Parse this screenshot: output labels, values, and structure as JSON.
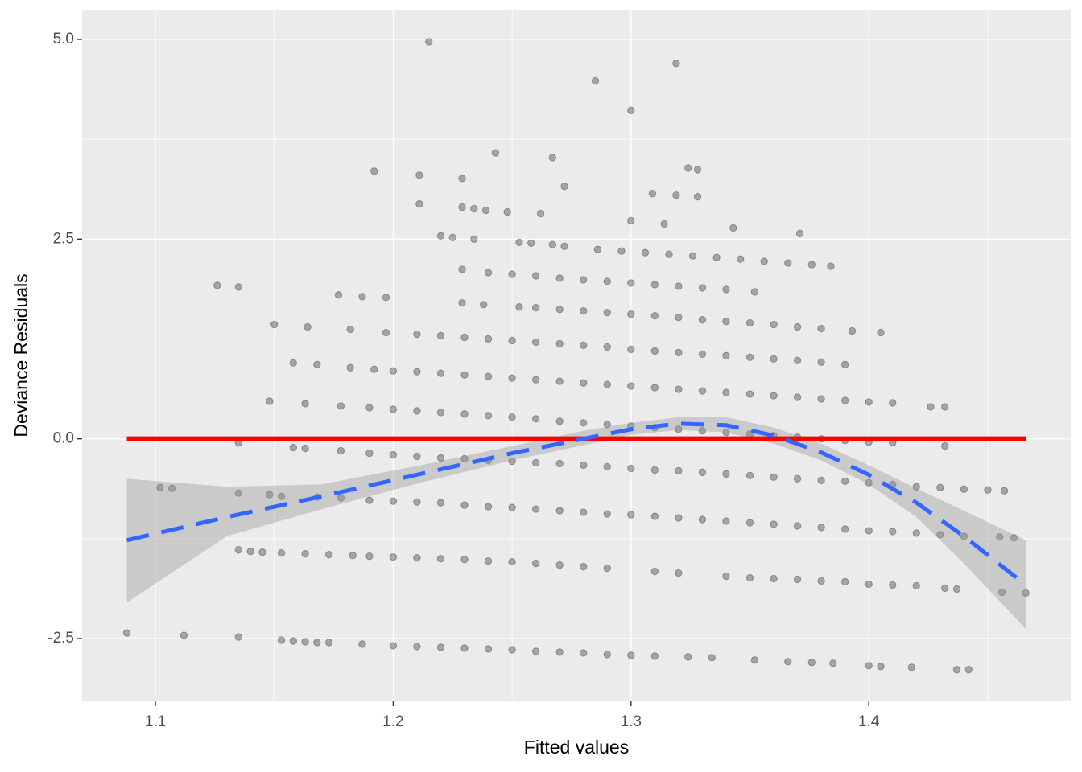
{
  "chart_data": {
    "type": "scatter",
    "x_label": "Fitted values",
    "y_label": "Deviance Residuals",
    "xlim": [
      1.0692,
      1.4849
    ],
    "ylim": [
      -3.285,
      5.372
    ],
    "xticks": [
      1.1,
      1.2,
      1.3,
      1.4
    ],
    "yticks": [
      {
        "value": -2.5,
        "label": "-2.5"
      },
      {
        "value": 0,
        "label": "0.0"
      },
      {
        "value": 2.5,
        "label": "2.5"
      },
      {
        "value": 5,
        "label": "5.0"
      }
    ],
    "x_minor_grid": [
      1.15,
      1.25,
      1.35,
      1.45
    ],
    "y_minor_grid": [
      -1.25,
      1.25,
      3.75
    ],
    "grid": true,
    "panel_color": "#EBEBEB",
    "point_color": "#000000",
    "x": [
      1.088,
      1.112,
      1.135,
      1.126,
      1.135,
      1.192,
      1.211,
      1.215,
      1.285,
      1.3,
      1.319,
      1.243,
      1.267,
      1.229,
      1.272,
      1.309,
      1.324,
      1.328,
      1.319,
      1.328,
      1.211,
      1.229,
      1.234,
      1.239,
      1.248,
      1.262,
      1.3,
      1.314,
      1.343,
      1.371,
      1.22,
      1.225,
      1.234,
      1.253,
      1.258,
      1.267,
      1.272,
      1.286,
      1.296,
      1.306,
      1.316,
      1.326,
      1.336,
      1.346,
      1.356,
      1.366,
      1.376,
      1.384,
      1.229,
      1.24,
      1.25,
      1.26,
      1.27,
      1.28,
      1.29,
      1.3,
      1.31,
      1.32,
      1.33,
      1.34,
      1.352,
      1.177,
      1.187,
      1.197,
      1.229,
      1.238,
      1.253,
      1.26,
      1.27,
      1.28,
      1.29,
      1.3,
      1.31,
      1.32,
      1.33,
      1.34,
      1.35,
      1.36,
      1.37,
      1.38,
      1.393,
      1.405,
      1.15,
      1.164,
      1.182,
      1.197,
      1.21,
      1.22,
      1.23,
      1.24,
      1.25,
      1.26,
      1.27,
      1.28,
      1.29,
      1.3,
      1.31,
      1.32,
      1.33,
      1.34,
      1.35,
      1.36,
      1.37,
      1.38,
      1.39,
      1.158,
      1.168,
      1.182,
      1.192,
      1.2,
      1.21,
      1.22,
      1.23,
      1.24,
      1.25,
      1.26,
      1.27,
      1.28,
      1.29,
      1.3,
      1.31,
      1.32,
      1.33,
      1.34,
      1.35,
      1.36,
      1.37,
      1.38,
      1.39,
      1.4,
      1.41,
      1.148,
      1.163,
      1.178,
      1.19,
      1.2,
      1.21,
      1.22,
      1.23,
      1.24,
      1.25,
      1.26,
      1.27,
      1.28,
      1.29,
      1.3,
      1.31,
      1.32,
      1.33,
      1.34,
      1.35,
      1.36,
      1.37,
      1.38,
      1.39,
      1.4,
      1.41,
      1.426,
      1.432,
      1.135,
      1.158,
      1.163,
      1.178,
      1.19,
      1.2,
      1.21,
      1.22,
      1.23,
      1.24,
      1.25,
      1.26,
      1.27,
      1.28,
      1.29,
      1.3,
      1.31,
      1.32,
      1.33,
      1.34,
      1.35,
      1.36,
      1.37,
      1.38,
      1.39,
      1.4,
      1.41,
      1.42,
      1.43,
      1.44,
      1.45,
      1.432,
      1.102,
      1.107,
      1.135,
      1.148,
      1.153,
      1.168,
      1.178,
      1.19,
      1.2,
      1.21,
      1.22,
      1.23,
      1.24,
      1.25,
      1.26,
      1.27,
      1.28,
      1.29,
      1.3,
      1.31,
      1.32,
      1.33,
      1.34,
      1.35,
      1.36,
      1.37,
      1.38,
      1.39,
      1.4,
      1.41,
      1.42,
      1.43,
      1.44,
      1.455,
      1.461,
      1.457,
      1.135,
      1.14,
      1.145,
      1.153,
      1.163,
      1.173,
      1.183,
      1.19,
      1.2,
      1.21,
      1.22,
      1.23,
      1.24,
      1.25,
      1.26,
      1.27,
      1.28,
      1.29,
      1.31,
      1.32,
      1.34,
      1.35,
      1.36,
      1.37,
      1.38,
      1.39,
      1.4,
      1.41,
      1.42,
      1.432,
      1.437,
      1.456,
      1.466,
      1.153,
      1.158,
      1.163,
      1.168,
      1.173,
      1.187,
      1.2,
      1.21,
      1.22,
      1.23,
      1.24,
      1.25,
      1.26,
      1.27,
      1.28,
      1.29,
      1.3,
      1.31,
      1.324,
      1.334,
      1.352,
      1.366,
      1.376,
      1.385,
      1.4,
      1.405,
      1.418,
      1.437,
      1.442
    ],
    "values": [
      -2.43,
      -2.46,
      -2.48,
      1.92,
      1.9,
      3.35,
      3.3,
      4.97,
      4.48,
      4.11,
      4.7,
      3.58,
      3.52,
      3.26,
      3.16,
      3.07,
      3.39,
      3.37,
      3.05,
      3.03,
      2.94,
      2.9,
      2.88,
      2.86,
      2.84,
      2.82,
      2.73,
      2.69,
      2.64,
      2.57,
      2.54,
      2.52,
      2.5,
      2.46,
      2.45,
      2.43,
      2.41,
      2.37,
      2.35,
      2.33,
      2.31,
      2.29,
      2.27,
      2.25,
      2.22,
      2.2,
      2.18,
      2.16,
      2.12,
      2.08,
      2.06,
      2.04,
      2.01,
      1.99,
      1.97,
      1.95,
      1.93,
      1.91,
      1.89,
      1.87,
      1.84,
      1.8,
      1.78,
      1.77,
      1.7,
      1.68,
      1.65,
      1.64,
      1.62,
      1.6,
      1.58,
      1.56,
      1.54,
      1.52,
      1.49,
      1.47,
      1.45,
      1.43,
      1.4,
      1.38,
      1.35,
      1.33,
      1.43,
      1.4,
      1.37,
      1.33,
      1.31,
      1.29,
      1.27,
      1.25,
      1.23,
      1.21,
      1.19,
      1.17,
      1.15,
      1.12,
      1.1,
      1.08,
      1.06,
      1.04,
      1.02,
      1.0,
      0.98,
      0.96,
      0.93,
      0.95,
      0.93,
      0.89,
      0.87,
      0.85,
      0.84,
      0.82,
      0.8,
      0.78,
      0.76,
      0.74,
      0.72,
      0.7,
      0.68,
      0.66,
      0.64,
      0.62,
      0.6,
      0.58,
      0.56,
      0.54,
      0.52,
      0.5,
      0.48,
      0.46,
      0.45,
      0.47,
      0.44,
      0.41,
      0.39,
      0.37,
      0.35,
      0.33,
      0.31,
      0.29,
      0.27,
      0.25,
      0.22,
      0.2,
      0.18,
      0.16,
      0.14,
      0.12,
      0.1,
      0.08,
      0.06,
      0.04,
      0.02,
      0.0,
      -0.02,
      -0.04,
      -0.05,
      0.4,
      0.4,
      -0.05,
      -0.11,
      -0.12,
      -0.15,
      -0.18,
      -0.2,
      -0.22,
      -0.24,
      -0.25,
      -0.27,
      -0.28,
      -0.3,
      -0.31,
      -0.33,
      -0.35,
      -0.37,
      -0.39,
      -0.4,
      -0.42,
      -0.44,
      -0.46,
      -0.48,
      -0.5,
      -0.52,
      -0.53,
      -0.55,
      -0.57,
      -0.6,
      -0.61,
      -0.63,
      -0.64,
      -0.09,
      -0.61,
      -0.62,
      -0.68,
      -0.7,
      -0.72,
      -0.73,
      -0.74,
      -0.77,
      -0.78,
      -0.79,
      -0.8,
      -0.83,
      -0.85,
      -0.86,
      -0.88,
      -0.9,
      -0.92,
      -0.94,
      -0.95,
      -0.97,
      -0.99,
      -1.01,
      -1.03,
      -1.05,
      -1.07,
      -1.09,
      -1.11,
      -1.13,
      -1.15,
      -1.16,
      -1.18,
      -1.2,
      -1.22,
      -1.23,
      -1.24,
      -0.65,
      -1.39,
      -1.41,
      -1.42,
      -1.43,
      -1.44,
      -1.45,
      -1.46,
      -1.47,
      -1.48,
      -1.49,
      -1.5,
      -1.51,
      -1.53,
      -1.54,
      -1.56,
      -1.58,
      -1.6,
      -1.62,
      -1.66,
      -1.68,
      -1.72,
      -1.74,
      -1.75,
      -1.76,
      -1.78,
      -1.79,
      -1.82,
      -1.83,
      -1.84,
      -1.87,
      -1.88,
      -1.92,
      -1.93,
      -2.52,
      -2.53,
      -2.54,
      -2.55,
      -2.55,
      -2.57,
      -2.59,
      -2.6,
      -2.61,
      -2.62,
      -2.63,
      -2.64,
      -2.66,
      -2.67,
      -2.68,
      -2.7,
      -2.71,
      -2.72,
      -2.73,
      -2.74,
      -2.77,
      -2.79,
      -2.8,
      -2.81,
      -2.84,
      -2.85,
      -2.86,
      -2.89,
      -2.89
    ],
    "smooth": {
      "color": "#3366FF",
      "band_color": "#999999",
      "x": [
        1.088,
        1.13,
        1.17,
        1.21,
        1.25,
        1.28,
        1.3,
        1.32,
        1.34,
        1.36,
        1.38,
        1.4,
        1.42,
        1.44,
        1.466
      ],
      "values": [
        -1.27,
        -0.98,
        -0.72,
        -0.45,
        -0.18,
        0.0,
        0.12,
        0.19,
        0.17,
        0.04,
        -0.17,
        -0.45,
        -0.8,
        -1.22,
        -1.83
      ],
      "lower": [
        -2.05,
        -1.22,
        -0.88,
        -0.56,
        -0.27,
        -0.08,
        0.05,
        0.11,
        0.08,
        -0.06,
        -0.27,
        -0.57,
        -0.98,
        -1.56,
        -2.38
      ],
      "upper": [
        -0.5,
        -0.6,
        -0.57,
        -0.34,
        -0.09,
        0.1,
        0.2,
        0.27,
        0.27,
        0.14,
        -0.06,
        -0.33,
        -0.62,
        -0.9,
        -1.27
      ]
    },
    "hline": {
      "value": 0,
      "color": "#FF0000"
    }
  }
}
